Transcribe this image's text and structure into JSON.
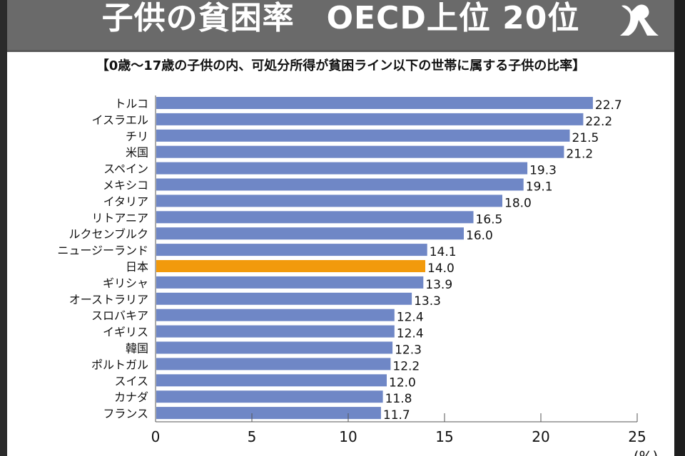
{
  "header": {
    "title": "子供の貧困率　OECD上位 20位",
    "logo_icon": "brand-logo-icon"
  },
  "subtitle": "【0歳～17歳の子供の内、可処分所得が貧困ライン以下の世帯に属する子供の比率】",
  "colors": {
    "bar": "#6f87c6",
    "highlight": "#f29a0c",
    "header_bg": "#6a6a6a",
    "frame": "#2b2b2b"
  },
  "chart_data": {
    "type": "bar",
    "orientation": "horizontal",
    "title": "子供の貧困率　OECD上位 20位",
    "subtitle": "【0歳～17歳の子供の内、可処分所得が貧困ライン以下の世帯に属する子供の比率】",
    "xlabel": "(%)",
    "ylabel": "",
    "xlim": [
      0,
      25
    ],
    "xticks": [
      0,
      5,
      10,
      15,
      20,
      25
    ],
    "grid": false,
    "highlight_category": "日本",
    "categories": [
      "トルコ",
      "イスラエル",
      "チリ",
      "米国",
      "スペイン",
      "メキシコ",
      "イタリア",
      "リトアニア",
      "ルクセンブルク",
      "ニュージーランド",
      "日本",
      "ギリシャ",
      "オーストラリア",
      "スロバキア",
      "イギリス",
      "韓国",
      "ポルトガル",
      "スイス",
      "カナダ",
      "フランス"
    ],
    "values": [
      22.7,
      22.2,
      21.5,
      21.2,
      19.3,
      19.1,
      18.0,
      16.5,
      16.0,
      14.1,
      14.0,
      13.9,
      13.3,
      12.4,
      12.4,
      12.3,
      12.2,
      12.0,
      11.8,
      11.7
    ],
    "value_labels": [
      "22.7",
      "22.2",
      "21.5",
      "21.2",
      "19.3",
      "19.1",
      "18.0",
      "16.5",
      "16.0",
      "14.1",
      "14.0",
      "13.9",
      "13.3",
      "12.4",
      "12.4",
      "12.3",
      "12.2",
      "12.0",
      "11.8",
      "11.7"
    ],
    "unit_label": "(%)"
  }
}
